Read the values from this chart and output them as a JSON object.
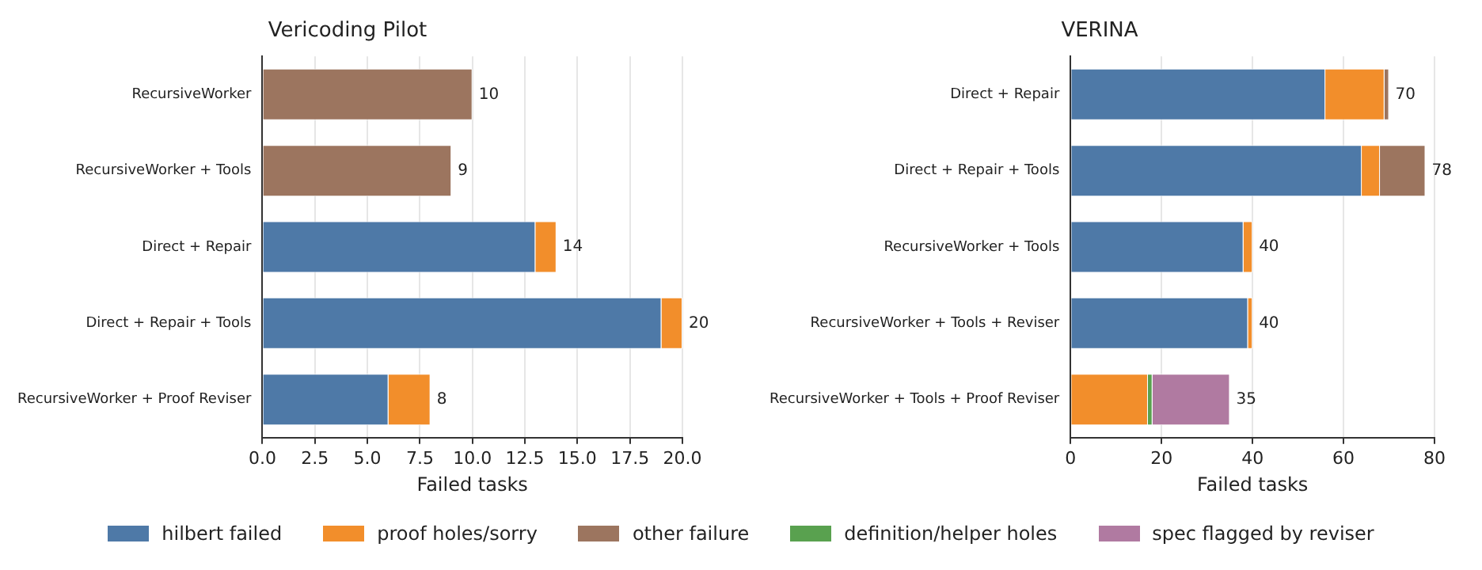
{
  "chart_data": [
    {
      "type": "bar",
      "title": "Vericoding Pilot",
      "xlabel": "Failed tasks",
      "orientation": "horizontal",
      "stacked": true,
      "grid": "x",
      "categories": [
        "RecursiveWorker",
        "RecursiveWorker + Tools",
        "Direct + Repair",
        "Direct + Repair + Tools",
        "RecursiveWorker + Proof Reviser"
      ],
      "series": [
        {
          "color": "#4e79a7",
          "values": [
            0,
            0,
            13,
            19,
            6
          ]
        },
        {
          "color": "#f28e2b",
          "values": [
            0,
            0,
            1,
            1,
            2
          ]
        },
        {
          "color": "#9c755f",
          "values": [
            10,
            9,
            0,
            0,
            0
          ]
        }
      ],
      "totals": [
        "10",
        "9",
        "14",
        "20",
        "8"
      ],
      "xlim": [
        0,
        20
      ],
      "xticks": [
        {
          "value": 0,
          "label": "0.0"
        },
        {
          "value": 2.5,
          "label": "2.5"
        },
        {
          "value": 5,
          "label": "5.0"
        },
        {
          "value": 7.5,
          "label": "7.5"
        },
        {
          "value": 10,
          "label": "10.0"
        },
        {
          "value": 12.5,
          "label": "12.5"
        },
        {
          "value": 15,
          "label": "15.0"
        },
        {
          "value": 17.5,
          "label": "17.5"
        },
        {
          "value": 20,
          "label": "20.0"
        }
      ]
    },
    {
      "type": "bar",
      "title": "VERINA",
      "xlabel": "Failed tasks",
      "orientation": "horizontal",
      "stacked": true,
      "grid": "x",
      "legend": "bottom",
      "categories": [
        "Direct + Repair",
        "Direct + Repair + Tools",
        "RecursiveWorker + Tools",
        "RecursiveWorker + Tools + Reviser",
        "RecursiveWorker + Tools + Proof Reviser"
      ],
      "series": [
        {
          "name": "hilbert failed",
          "color": "#4e79a7",
          "values": [
            56,
            64,
            38,
            39,
            0
          ]
        },
        {
          "name": "proof holes/sorry",
          "color": "#f28e2b",
          "values": [
            13,
            4,
            2,
            1,
            17
          ]
        },
        {
          "name": "other failure",
          "color": "#9c755f",
          "values": [
            1,
            10,
            0,
            0,
            0
          ]
        },
        {
          "name": "definition/helper holes",
          "color": "#59a14f",
          "values": [
            0,
            0,
            0,
            0,
            1
          ]
        },
        {
          "name": "spec flagged by reviser",
          "color": "#b07aa1",
          "values": [
            0,
            0,
            0,
            0,
            17
          ]
        }
      ],
      "totals": [
        "70",
        "78",
        "40",
        "40",
        "35"
      ],
      "xlim": [
        0,
        80
      ],
      "xticks": [
        0,
        20,
        40,
        60,
        80
      ]
    }
  ]
}
